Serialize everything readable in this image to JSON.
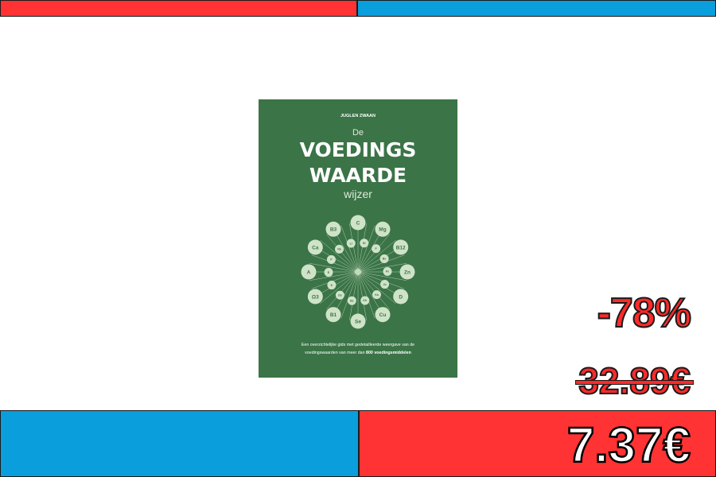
{
  "colors": {
    "red": "#ff3333",
    "blue": "#0a9edc",
    "cover_green": "#3b7447",
    "cover_light": "#cfe3c8"
  },
  "book": {
    "author": "JUGLEN ZWAAN",
    "title_pre": "De",
    "title_line1": "VOEDINGS",
    "title_line2": "WAARDE",
    "title_line3": "wijzer",
    "subtitle_line1": "Een overzichtelijke gids met gedetailleerde weergave van de",
    "subtitle_line2_pre": "voedingswaarden van meer dan ",
    "subtitle_line2_bold": "800 voedingsmiddelen",
    "outer_nutrients": [
      "C",
      "Mg",
      "B12",
      "Zn",
      "D",
      "Cu",
      "Se",
      "B1",
      "Ω3",
      "A",
      "Ca",
      "B3"
    ],
    "inner_nutrients": [
      "Ni",
      "F",
      "Be",
      "Fe",
      "Jo",
      "Ka",
      "Kh",
      "Bz",
      "Ωs",
      "K",
      "E",
      "P",
      "Na",
      "Li"
    ]
  },
  "pricing": {
    "discount": "-78%",
    "old_price": "32.89€",
    "new_price": "7.37€"
  }
}
